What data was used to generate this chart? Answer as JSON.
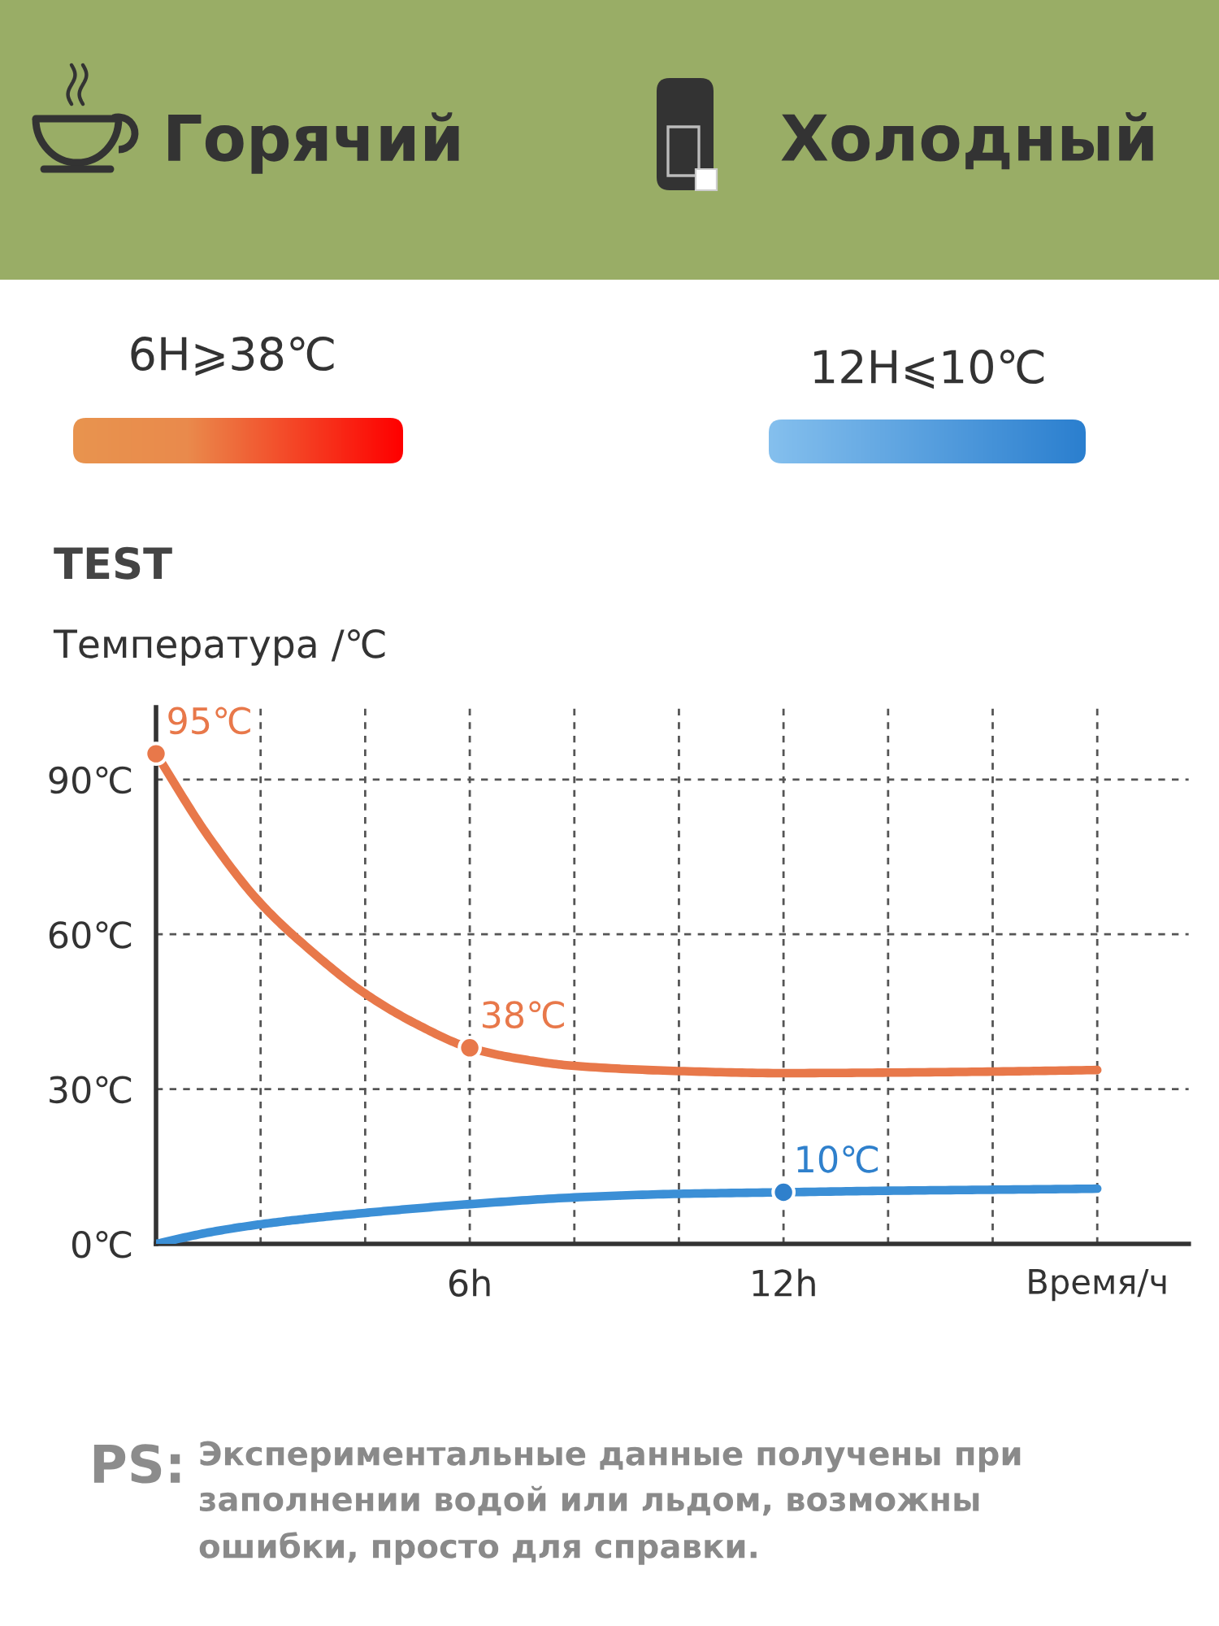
{
  "chart_data": {
    "type": "line",
    "title": "TEST",
    "ylabel": "Температура /℃",
    "xlabel": "Время/ч",
    "xlim": [
      0,
      19.75
    ],
    "xticks": [
      {
        "value": 2,
        "label": null
      },
      {
        "value": 4,
        "label": null
      },
      {
        "value": 6,
        "label": "6h"
      },
      {
        "value": 8,
        "label": null
      },
      {
        "value": 10,
        "label": null
      },
      {
        "value": 12,
        "label": "12h"
      },
      {
        "value": 14,
        "label": null
      },
      {
        "value": 16,
        "label": null
      },
      {
        "value": 18,
        "label": null
      }
    ],
    "ylim": [
      0,
      104
    ],
    "yticks": [
      {
        "value": 0,
        "label": "0℃"
      },
      {
        "value": 30,
        "label": "30℃"
      },
      {
        "value": 60,
        "label": "60℃"
      },
      {
        "value": 90,
        "label": "90℃"
      }
    ],
    "grid": true,
    "series": [
      {
        "color": "#e8784a",
        "x": [
          0,
          1,
          2,
          3,
          4,
          5,
          6,
          7,
          8,
          10,
          12,
          14,
          16,
          18
        ],
        "values": [
          95,
          79,
          66,
          56.5,
          48.5,
          42.5,
          38,
          35.8,
          34.5,
          33.5,
          33.1,
          33.2,
          33.4,
          33.7
        ]
      },
      {
        "color": "#3b8fd6",
        "x": [
          0,
          1,
          2,
          3,
          4,
          5,
          6,
          8,
          10,
          12,
          14,
          16,
          18
        ],
        "values": [
          0,
          2.2,
          3.8,
          5,
          6,
          6.9,
          7.7,
          9,
          9.7,
          10,
          10.3,
          10.5,
          10.7
        ]
      },
      {
        "type": "scatter",
        "marker": "circle",
        "x": [
          0,
          6,
          12
        ],
        "values": [
          95,
          38,
          10
        ],
        "colors": [
          "#e8784a",
          "#e8784a",
          "#2f80cc"
        ],
        "value_labels": [
          "95℃",
          "38℃",
          "10℃"
        ]
      }
    ],
    "annotations": [
      "Горячий",
      "Холодный",
      "6H⩾38℃",
      "12H⩽10℃",
      "PS:",
      "Экспериментальные данные получены при\nзаполнении водой или льдом, возможны\nошибки, просто для справки."
    ]
  }
}
